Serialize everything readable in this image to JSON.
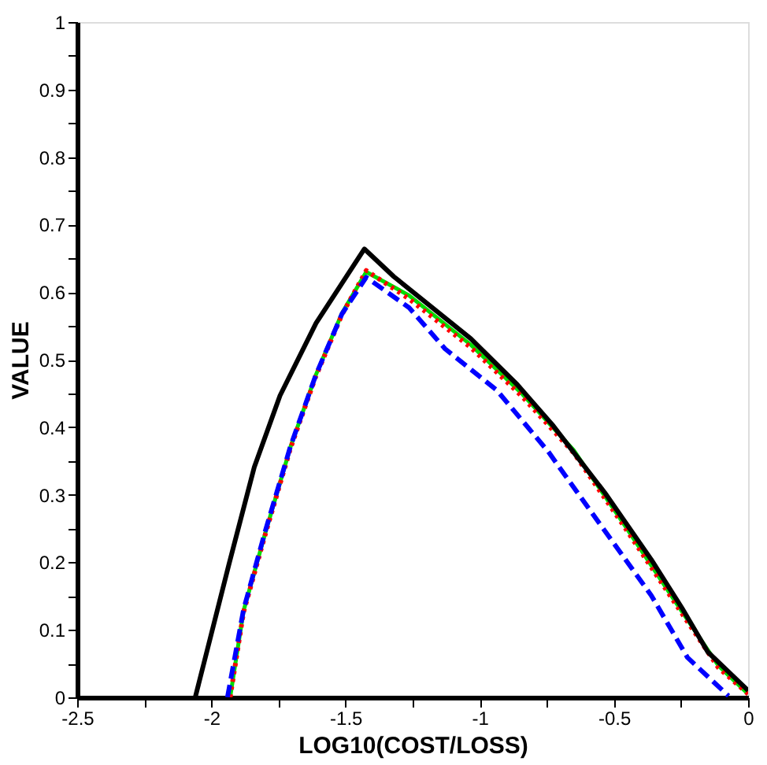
{
  "chart_data": {
    "type": "line",
    "xlabel": "LOG10(COST/LOSS)",
    "ylabel": "VALUE",
    "xlim": [
      -2.5,
      0
    ],
    "ylim": [
      0,
      1
    ],
    "xticks": [
      -2.5,
      {
        "value": -2.25,
        "label": null
      },
      -2,
      {
        "value": -1.75,
        "label": null
      },
      -1.5,
      {
        "value": -1.25,
        "label": null
      },
      -1,
      {
        "value": -0.75,
        "label": null
      },
      -0.5,
      {
        "value": -0.25,
        "label": null
      },
      0
    ],
    "yticks": [
      0,
      {
        "value": 0.05,
        "label": null
      },
      0.1,
      {
        "value": 0.15,
        "label": null
      },
      0.2,
      {
        "value": 0.25,
        "label": null
      },
      0.3,
      {
        "value": 0.35,
        "label": null
      },
      0.4,
      {
        "value": 0.45,
        "label": null
      },
      0.5,
      {
        "value": 0.55,
        "label": null
      },
      0.6,
      {
        "value": 0.65,
        "label": null
      },
      0.7,
      {
        "value": 0.75,
        "label": null
      },
      0.8,
      {
        "value": 0.85,
        "label": null
      },
      0.9,
      {
        "value": 0.95,
        "label": null
      },
      1
    ],
    "grid": false,
    "series": [
      {
        "color": "#00dd00",
        "line_style": "solid",
        "x": [
          -1.93,
          -1.88,
          -1.8,
          -1.705,
          -1.61,
          -1.513,
          -1.423,
          -1.263,
          -1.033,
          -0.841,
          -0.65,
          -0.457,
          -0.265,
          -0.111,
          0
        ],
        "values": [
          0,
          0.128,
          0.242,
          0.371,
          0.478,
          0.569,
          0.63,
          0.595,
          0.522,
          0.449,
          0.366,
          0.253,
          0.138,
          0.047,
          0.005
        ]
      },
      {
        "color": "#ff0000",
        "line_style": "dotted",
        "x": [
          -1.93,
          -1.88,
          -1.8,
          -1.705,
          -1.61,
          -1.513,
          -1.423,
          -1.263,
          -1.033,
          -0.841,
          -0.65,
          -0.457,
          -0.265,
          -0.111,
          0
        ],
        "values": [
          0,
          0.126,
          0.24,
          0.369,
          0.476,
          0.567,
          0.632,
          0.59,
          0.518,
          0.445,
          0.362,
          0.25,
          0.135,
          0.044,
          0.005
        ]
      },
      {
        "color": "#0000ff",
        "line_style": "dashed",
        "x": [
          -1.94,
          -1.88,
          -1.8,
          -1.705,
          -1.61,
          -1.513,
          -1.423,
          -1.263,
          -1.129,
          -0.937,
          -0.745,
          -0.553,
          -0.361,
          -0.226,
          -0.073
        ],
        "values": [
          0,
          0.13,
          0.245,
          0.372,
          0.478,
          0.568,
          0.622,
          0.577,
          0.516,
          0.455,
          0.364,
          0.257,
          0.151,
          0.059,
          0.002
        ]
      },
      {
        "color": "#000000",
        "line_style": "solid",
        "x": [
          -2.06,
          -1.935,
          -1.84,
          -1.744,
          -1.61,
          -1.43,
          -1.32,
          -1.033,
          -0.86,
          -0.726,
          -0.534,
          -0.361,
          -0.246,
          -0.15,
          0
        ],
        "values": [
          0,
          0.196,
          0.341,
          0.447,
          0.554,
          0.664,
          0.623,
          0.531,
          0.463,
          0.402,
          0.303,
          0.204,
          0.132,
          0.067,
          0.01
        ]
      }
    ]
  }
}
